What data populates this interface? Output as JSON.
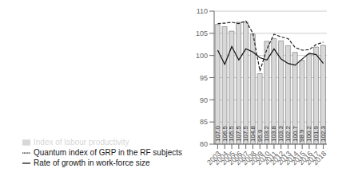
{
  "chart_data": {
    "type": "bar",
    "categories": [
      "2003",
      "2004",
      "2005",
      "2006",
      "2007",
      "2008",
      "2009",
      "2010",
      "2011",
      "2012",
      "2013",
      "2014",
      "2015",
      "2016",
      "2017",
      "2018"
    ],
    "series": [
      {
        "name": "Index of labour productivity",
        "type": "bar",
        "color": "#d8d8d8",
        "data_labels": true,
        "values": [
          107.0,
          106.5,
          105.5,
          107.5,
          107.5,
          104.8,
          95.9,
          103.2,
          103.8,
          103.3,
          102.2,
          100.7,
          98.9,
          100.2,
          101.9,
          102.3
        ],
        "value_labels": [
          "107.0",
          "106.5",
          "105.5",
          "107.5",
          "107.5",
          "104.8",
          "95.9",
          "103.2",
          "103.8",
          "103.3",
          "102.2",
          "100.7",
          "98.9",
          "100.2",
          "101.9",
          "102.3"
        ]
      },
      {
        "name": "Quantum index of GRP in the RF subjects",
        "type": "line",
        "color": "#222222",
        "line_style": "dashed",
        "values": [
          107.2,
          107.3,
          107.5,
          107.2,
          107.8,
          105.0,
          96.5,
          101.5,
          104.8,
          104.2,
          103.8,
          101.8,
          101.2,
          101.3,
          102.5,
          103.0
        ]
      },
      {
        "name": "Rate of growth in work-force size",
        "type": "line",
        "color": "#111111",
        "line_style": "solid",
        "values": [
          101.2,
          98.0,
          102.0,
          99.0,
          101.5,
          100.8,
          99.5,
          99.0,
          101.5,
          99.2,
          98.2,
          97.8,
          99.2,
          100.5,
          100.2,
          98.2
        ]
      }
    ],
    "ylim": [
      80,
      110
    ],
    "yticks": [
      80,
      85,
      90,
      95,
      100,
      105,
      110
    ],
    "grid": true,
    "legend": "bottom"
  }
}
